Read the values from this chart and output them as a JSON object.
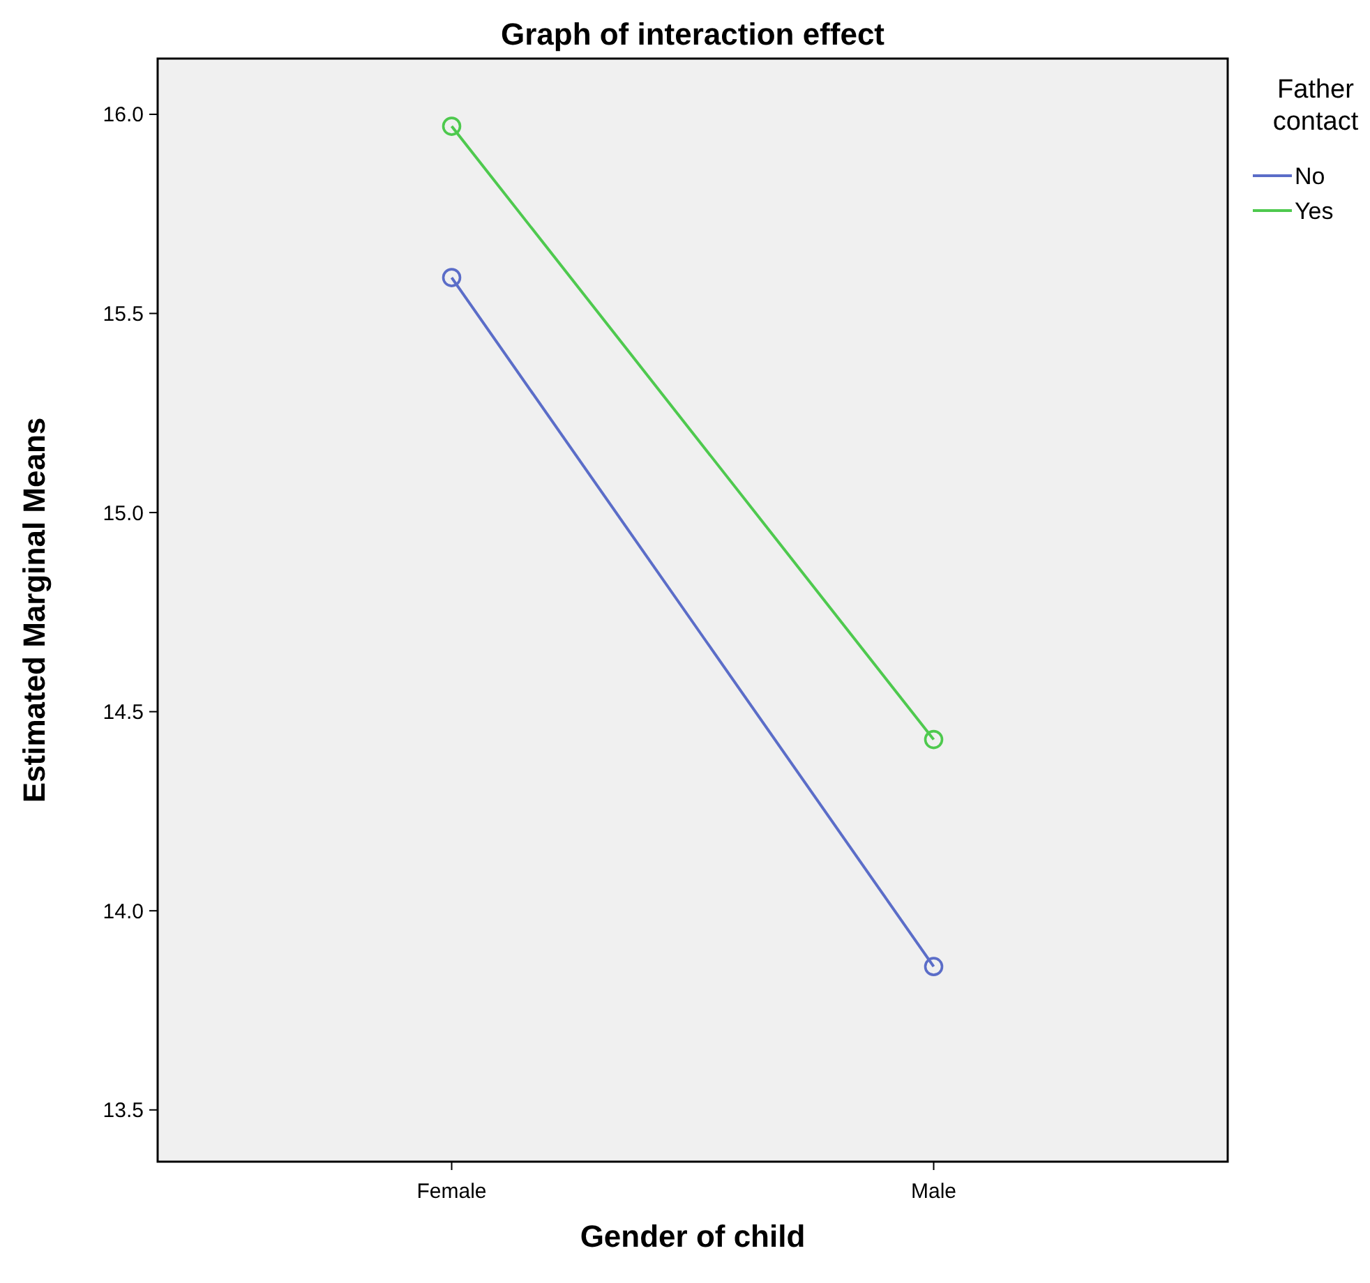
{
  "chart_data": {
    "type": "line",
    "title": "Graph of interaction effect",
    "xlabel": "Gender of child",
    "ylabel": "Estimated Marginal Means",
    "legend_title": "Father contact",
    "categories": [
      "Female",
      "Male"
    ],
    "series": [
      {
        "name": "No",
        "color": "#5b6dc8",
        "values": [
          15.59,
          13.86
        ]
      },
      {
        "name": "Yes",
        "color": "#4ec94e",
        "values": [
          15.97,
          14.43
        ]
      }
    ],
    "ylim": [
      13.37,
      16.14
    ],
    "yticks": [
      {
        "value": 13.5,
        "label": "13.5"
      },
      {
        "value": 14,
        "label": "14.0"
      },
      {
        "value": 14.5,
        "label": "14.5"
      },
      {
        "value": 15,
        "label": "15.0"
      },
      {
        "value": 15.5,
        "label": "15.5"
      },
      {
        "value": 16,
        "label": "16.0"
      }
    ],
    "grid": false,
    "legend": "top right",
    "marker": "circle",
    "line_style": "solid"
  }
}
